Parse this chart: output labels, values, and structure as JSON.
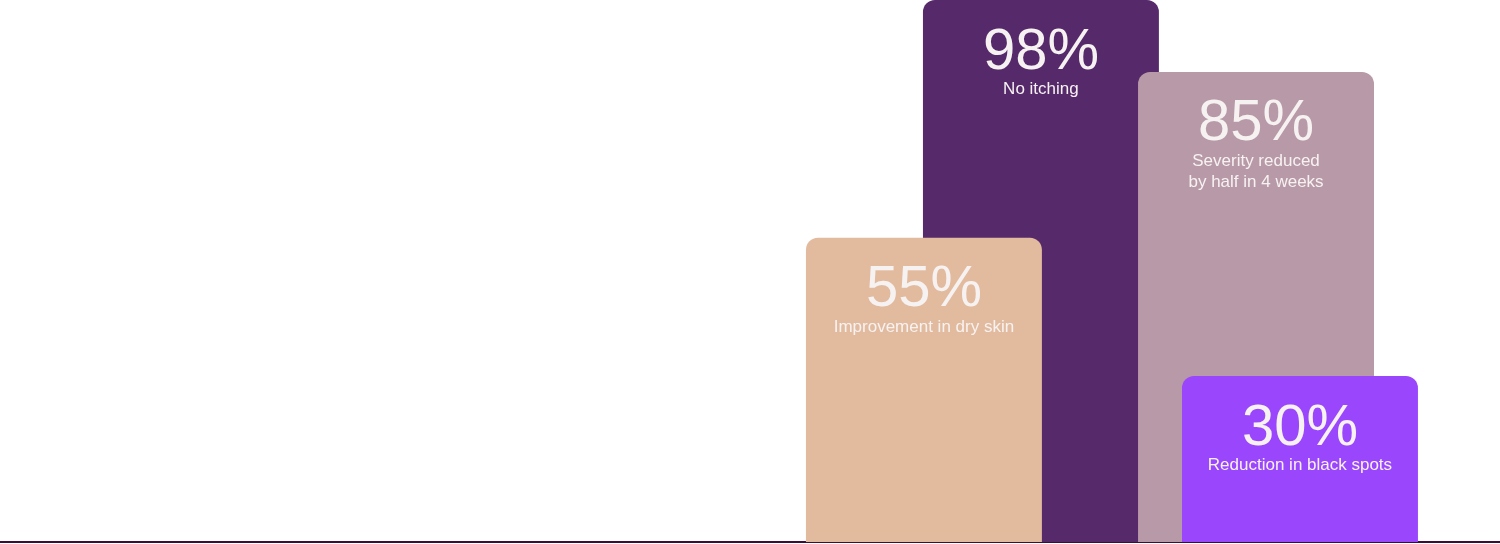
{
  "chart_data": {
    "type": "bar",
    "categories": [
      "Improvement in dry skin",
      "No itching",
      "Severity reduced\nby half in 4 weeks",
      "Reduction in black spots"
    ],
    "values": [
      55,
      98,
      85,
      30
    ],
    "colors": [
      "#e2ba9e",
      "#56296b",
      "#b899a7",
      "#9a46fd"
    ],
    "value_labels": [
      "55%",
      "98%",
      "85%",
      "30%"
    ],
    "ylim": [
      0,
      98
    ],
    "tick_labels": false
  }
}
